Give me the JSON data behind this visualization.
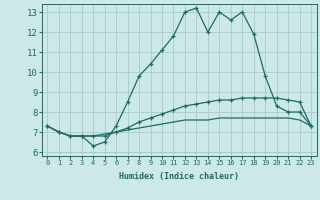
{
  "xlabel": "Humidex (Indice chaleur)",
  "bg_color": "#cce8e8",
  "grid_color": "#aacece",
  "line_color": "#1a6e64",
  "xlim": [
    -0.5,
    23.5
  ],
  "ylim": [
    5.8,
    13.4
  ],
  "yticks": [
    6,
    7,
    8,
    9,
    10,
    11,
    12,
    13
  ],
  "xticks": [
    0,
    1,
    2,
    3,
    4,
    5,
    6,
    7,
    8,
    9,
    10,
    11,
    12,
    13,
    14,
    15,
    16,
    17,
    18,
    19,
    20,
    21,
    22,
    23
  ],
  "line1_x": [
    0,
    1,
    2,
    3,
    4,
    5,
    6,
    7,
    8,
    9,
    10,
    11,
    12,
    13,
    14,
    15,
    16,
    17,
    18,
    19,
    20,
    21,
    22,
    23
  ],
  "line1_y": [
    7.3,
    7.0,
    6.8,
    6.8,
    6.3,
    6.5,
    7.3,
    8.5,
    9.8,
    10.4,
    11.1,
    11.8,
    13.0,
    13.2,
    12.0,
    13.0,
    12.6,
    13.0,
    11.9,
    9.8,
    8.3,
    8.0,
    8.0,
    7.3
  ],
  "line2_x": [
    0,
    1,
    2,
    3,
    4,
    5,
    6,
    7,
    8,
    9,
    10,
    11,
    12,
    13,
    14,
    15,
    16,
    17,
    18,
    19,
    20,
    21,
    22,
    23
  ],
  "line2_y": [
    7.3,
    7.0,
    6.8,
    6.8,
    6.8,
    6.8,
    7.0,
    7.2,
    7.5,
    7.7,
    7.9,
    8.1,
    8.3,
    8.4,
    8.5,
    8.6,
    8.6,
    8.7,
    8.7,
    8.7,
    8.7,
    8.6,
    8.5,
    7.3
  ],
  "line3_x": [
    0,
    1,
    2,
    3,
    4,
    5,
    6,
    7,
    8,
    9,
    10,
    11,
    12,
    13,
    14,
    15,
    16,
    17,
    18,
    19,
    20,
    21,
    22,
    23
  ],
  "line3_y": [
    7.3,
    7.0,
    6.8,
    6.8,
    6.8,
    6.9,
    7.0,
    7.1,
    7.2,
    7.3,
    7.4,
    7.5,
    7.6,
    7.6,
    7.6,
    7.7,
    7.7,
    7.7,
    7.7,
    7.7,
    7.7,
    7.7,
    7.6,
    7.3
  ],
  "xlabel_fontsize": 6.0,
  "tick_fontsize_x": 5.0,
  "tick_fontsize_y": 6.5
}
